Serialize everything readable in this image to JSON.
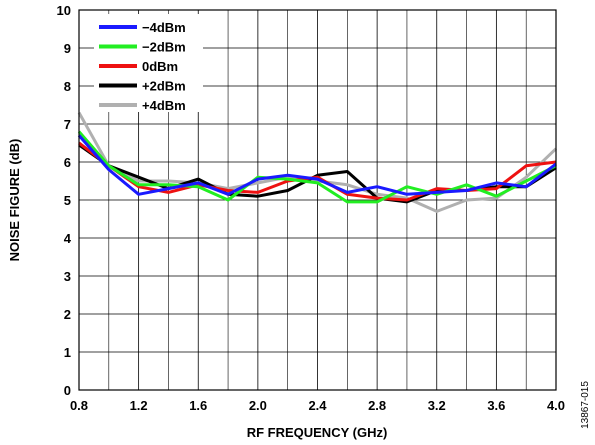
{
  "chart_data": {
    "type": "line",
    "xlabel": "RF FREQUENCY (GHz)",
    "ylabel": "NOISE FIGURE (dB)",
    "xlim": [
      0.8,
      4.0
    ],
    "ylim": [
      0,
      10
    ],
    "x_ticks": [
      "0.8",
      "1.2",
      "1.6",
      "2.0",
      "2.4",
      "2.8",
      "3.2",
      "3.6",
      "4.0"
    ],
    "y_ticks": [
      "0",
      "1",
      "2",
      "3",
      "4",
      "5",
      "6",
      "7",
      "8",
      "9",
      "10"
    ],
    "grid": true,
    "legend_position": "top-left",
    "x": [
      0.8,
      1.0,
      1.2,
      1.4,
      1.6,
      1.8,
      2.0,
      2.2,
      2.4,
      2.6,
      2.8,
      3.0,
      3.2,
      3.4,
      3.6,
      3.8,
      4.0
    ],
    "series": [
      {
        "name": "−4dBm",
        "color": "#1a1aff",
        "values": [
          6.7,
          5.8,
          5.15,
          5.3,
          5.45,
          5.15,
          5.55,
          5.65,
          5.55,
          5.2,
          5.35,
          5.15,
          5.2,
          5.25,
          5.45,
          5.35,
          5.95
        ]
      },
      {
        "name": "−2dBm",
        "color": "#22ee22",
        "values": [
          6.8,
          5.9,
          5.4,
          5.4,
          5.35,
          5.0,
          5.6,
          5.55,
          5.45,
          4.95,
          4.95,
          5.35,
          5.15,
          5.4,
          5.1,
          5.5,
          5.9
        ]
      },
      {
        "name": "0dBm",
        "color": "#ee1111",
        "values": [
          6.5,
          5.9,
          5.35,
          5.2,
          5.4,
          5.25,
          5.2,
          5.5,
          5.6,
          5.15,
          5.05,
          5.0,
          5.3,
          5.25,
          5.3,
          5.9,
          6.0
        ]
      },
      {
        "name": "+2dBm",
        "color": "#000000",
        "values": [
          6.45,
          5.9,
          5.6,
          5.3,
          5.55,
          5.15,
          5.1,
          5.25,
          5.65,
          5.75,
          5.05,
          4.95,
          5.25,
          5.25,
          5.35,
          5.35,
          5.85
        ]
      },
      {
        "name": "+4dBm",
        "color": "#b0b0b0",
        "values": [
          7.3,
          5.9,
          5.5,
          5.5,
          5.45,
          5.3,
          5.45,
          5.6,
          5.5,
          5.4,
          5.15,
          5.05,
          4.7,
          5.0,
          5.05,
          5.6,
          6.35
        ]
      }
    ],
    "figure_id": "13867-015"
  }
}
